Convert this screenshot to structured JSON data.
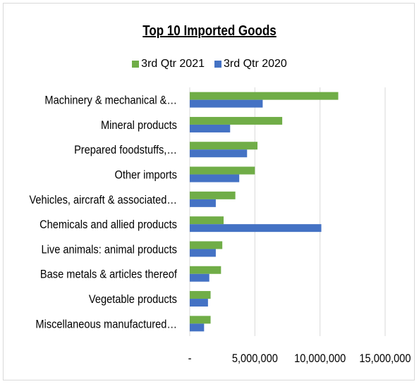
{
  "chart_data": {
    "type": "bar",
    "orientation": "horizontal",
    "title": "Top 10 Imported Goods",
    "categories": [
      "Machinery & mechanical &…",
      "Mineral products",
      "Prepared foodstuffs,…",
      "Other imports",
      "Vehicles, aircraft & associated…",
      "Chemicals and allied products",
      "Live animals: animal products",
      "Base metals & articles thereof",
      "Vegetable products",
      "Miscellaneous manufactured…"
    ],
    "series": [
      {
        "name": "3rd Qtr 2021",
        "color": "#70ad47",
        "values": [
          11400000,
          7100000,
          5200000,
          5000000,
          3500000,
          2600000,
          2500000,
          2400000,
          1600000,
          1600000
        ]
      },
      {
        "name": "3rd Qtr 2020",
        "color": "#4472c4",
        "values": [
          5600000,
          3100000,
          4400000,
          3800000,
          2000000,
          10100000,
          2000000,
          1500000,
          1400000,
          1100000
        ]
      }
    ],
    "xlim": [
      0,
      15000000
    ],
    "xticks": [
      0,
      5000000,
      10000000,
      15000000
    ],
    "xtick_labels": [
      "-",
      "5,000,000",
      "10,000,000",
      "15,000,000"
    ],
    "grid": "vertical",
    "legend": "top"
  }
}
